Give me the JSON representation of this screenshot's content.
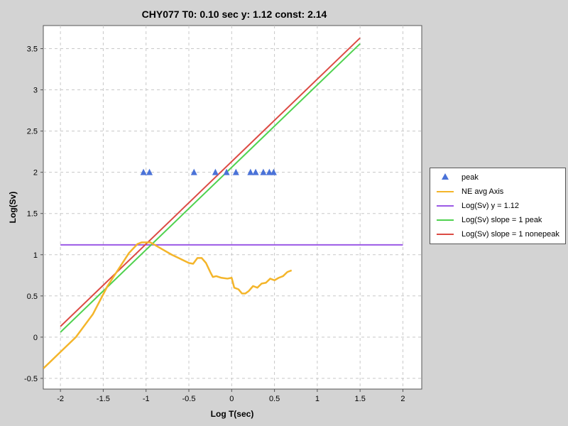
{
  "chart_data": {
    "type": "line",
    "title": "CHY077 T0: 0.10 sec  y: 1.12 const: 2.14",
    "xlabel": "Log T(sec)",
    "ylabel": "Log(Sv)",
    "xlim": [
      -2.2,
      2.22
    ],
    "ylim": [
      -0.63,
      3.78
    ],
    "xticks": [
      -2,
      -1.5,
      -1,
      -0.5,
      0,
      0.5,
      1,
      1.5,
      2
    ],
    "xtick_labels": [
      "-2",
      "-1.5",
      "-1",
      "-0.5",
      "0",
      "0.5",
      "1",
      "1.5",
      "2"
    ],
    "yticks": [
      -0.5,
      0,
      0.5,
      1,
      1.5,
      2,
      2.5,
      3,
      3.5
    ],
    "ytick_labels": [
      "-0.5",
      "0",
      "0.5",
      "1",
      "1.5",
      "2",
      "2.5",
      "3",
      "3.5"
    ],
    "grid": true,
    "legend_position": "right",
    "series": [
      {
        "name": "peak",
        "kind": "scatter",
        "marker": "triangle",
        "color": "#4a72d8",
        "x": [
          -1.03,
          -0.96,
          -0.44,
          -0.19,
          -0.06,
          0.05,
          0.22,
          0.28,
          0.37,
          0.44,
          0.49
        ],
        "y": [
          2,
          2,
          2,
          2,
          2,
          2,
          2,
          2,
          2,
          2,
          2
        ]
      },
      {
        "name": "NE avg Axis",
        "kind": "line",
        "color": "#f4b52a",
        "x": [
          -2.2,
          -2.0,
          -1.82,
          -1.62,
          -1.45,
          -1.3,
          -1.2,
          -1.1,
          -1.05,
          -1.0,
          -0.95,
          -0.9,
          -0.8,
          -0.7,
          -0.6,
          -0.5,
          -0.45,
          -0.4,
          -0.35,
          -0.3,
          -0.25,
          -0.22,
          -0.18,
          -0.12,
          -0.05,
          0.0,
          0.03,
          0.08,
          0.12,
          0.16,
          0.2,
          0.25,
          0.3,
          0.35,
          0.4,
          0.45,
          0.5,
          0.55,
          0.6,
          0.65,
          0.7
        ],
        "y": [
          -0.38,
          -0.18,
          0.0,
          0.28,
          0.62,
          0.86,
          1.02,
          1.13,
          1.15,
          1.15,
          1.15,
          1.12,
          1.06,
          1.0,
          0.95,
          0.9,
          0.89,
          0.96,
          0.96,
          0.9,
          0.79,
          0.73,
          0.74,
          0.72,
          0.71,
          0.72,
          0.6,
          0.58,
          0.53,
          0.53,
          0.56,
          0.62,
          0.6,
          0.65,
          0.66,
          0.71,
          0.69,
          0.72,
          0.74,
          0.79,
          0.81
        ]
      },
      {
        "name": "Log(Sv) y = 1.12",
        "kind": "line",
        "color": "#9b59e6",
        "x": [
          -2,
          2
        ],
        "y": [
          1.12,
          1.12
        ]
      },
      {
        "name": "Log(Sv) slope = 1 peak",
        "kind": "line",
        "color": "#4fd24f",
        "x": [
          -2,
          1.5
        ],
        "y": [
          0.06,
          3.56
        ]
      },
      {
        "name": "Log(Sv) slope = 1 nonepeak",
        "kind": "line",
        "color": "#dc4b44",
        "x": [
          -2,
          1.5
        ],
        "y": [
          0.13,
          3.63
        ]
      }
    ]
  }
}
